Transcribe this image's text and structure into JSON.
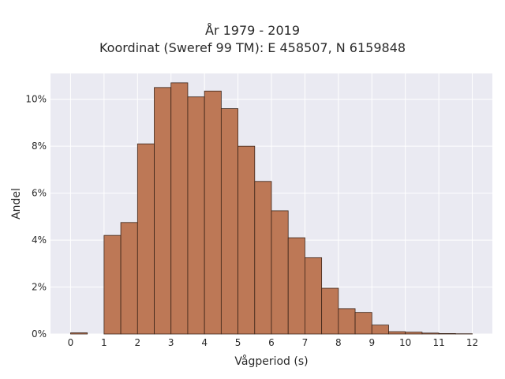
{
  "chart_data": {
    "type": "bar",
    "title_line1": "År 1979 - 2019",
    "title_line2": "Koordinat (Sweref 99 TM): E 458507, N 6159848",
    "xlabel": "Vågperiod (s)",
    "ylabel": "Andel",
    "xlim": [
      -0.6,
      12.6
    ],
    "ylim": [
      0,
      11.1
    ],
    "xticks": [
      0,
      1,
      2,
      3,
      4,
      5,
      6,
      7,
      8,
      9,
      10,
      11,
      12
    ],
    "yticks": [
      0,
      2,
      4,
      6,
      8,
      10
    ],
    "ytick_labels": [
      "0%",
      "2%",
      "4%",
      "6%",
      "8%",
      "10%"
    ],
    "grid": true,
    "bin_width": 0.5,
    "bin_starts": [
      0,
      0.5,
      1,
      1.5,
      2,
      2.5,
      3,
      3.5,
      4,
      4.5,
      5,
      5.5,
      6,
      6.5,
      7,
      7.5,
      8,
      8.5,
      9,
      9.5,
      10,
      10.5,
      11,
      11.5
    ],
    "values": [
      0.05,
      0,
      4.2,
      4.75,
      8.1,
      10.5,
      10.7,
      10.1,
      10.35,
      9.6,
      8.0,
      6.5,
      5.25,
      4.1,
      3.25,
      1.95,
      1.08,
      0.92,
      0.38,
      0.1,
      0.08,
      0.04,
      0.02,
      0.01
    ],
    "colors": {
      "bar": "#bd7856",
      "bar_edge": "#3b2418",
      "background": "#eaeaf2",
      "grid": "#ffffff"
    }
  }
}
